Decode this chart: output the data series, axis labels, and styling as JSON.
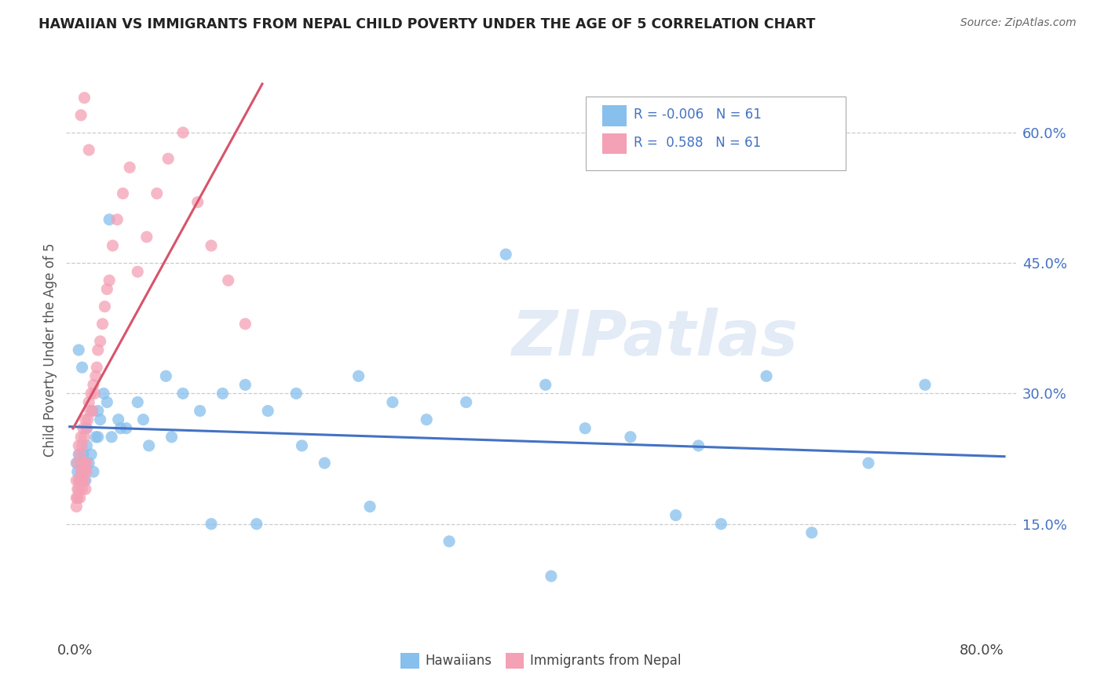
{
  "title": "HAWAIIAN VS IMMIGRANTS FROM NEPAL CHILD POVERTY UNDER THE AGE OF 5 CORRELATION CHART",
  "source": "Source: ZipAtlas.com",
  "legend_label1": "Hawaiians",
  "legend_label2": "Immigrants from Nepal",
  "r1": -0.006,
  "r2": 0.588,
  "n1": 61,
  "n2": 61,
  "color_blue": "#87BFED",
  "color_pink": "#F4A0B5",
  "line_blue": "#4472C4",
  "line_pink": "#D9536A",
  "watermark": "ZIPatlas",
  "ylabel_label": "Child Poverty Under the Age of 5",
  "xlim": [
    0.0,
    0.8
  ],
  "ylim": [
    0.0,
    0.65
  ],
  "yticks": [
    0.15,
    0.3,
    0.45,
    0.6
  ],
  "ytick_labels": [
    "15.0%",
    "30.0%",
    "45.0%",
    "60.0%"
  ],
  "xticks": [
    0.0,
    0.8
  ],
  "xtick_labels": [
    "0.0%",
    "80.0%"
  ],
  "haw_x": [
    0.001,
    0.002,
    0.003,
    0.004,
    0.005,
    0.006,
    0.007,
    0.008,
    0.009,
    0.01,
    0.012,
    0.014,
    0.016,
    0.018,
    0.02,
    0.022,
    0.025,
    0.028,
    0.032,
    0.038,
    0.045,
    0.055,
    0.065,
    0.08,
    0.095,
    0.11,
    0.13,
    0.15,
    0.17,
    0.195,
    0.22,
    0.25,
    0.28,
    0.31,
    0.345,
    0.38,
    0.415,
    0.45,
    0.49,
    0.53,
    0.57,
    0.61,
    0.65,
    0.7,
    0.75,
    0.003,
    0.006,
    0.01,
    0.015,
    0.02,
    0.03,
    0.04,
    0.06,
    0.085,
    0.12,
    0.16,
    0.2,
    0.26,
    0.33,
    0.42,
    0.55
  ],
  "haw_y": [
    0.22,
    0.21,
    0.23,
    0.2,
    0.22,
    0.21,
    0.23,
    0.22,
    0.2,
    0.24,
    0.22,
    0.23,
    0.21,
    0.25,
    0.28,
    0.27,
    0.3,
    0.29,
    0.25,
    0.27,
    0.26,
    0.29,
    0.24,
    0.32,
    0.3,
    0.28,
    0.3,
    0.31,
    0.28,
    0.3,
    0.22,
    0.32,
    0.29,
    0.27,
    0.29,
    0.46,
    0.31,
    0.26,
    0.25,
    0.16,
    0.15,
    0.32,
    0.14,
    0.22,
    0.31,
    0.35,
    0.33,
    0.26,
    0.28,
    0.25,
    0.5,
    0.26,
    0.27,
    0.25,
    0.15,
    0.15,
    0.24,
    0.17,
    0.13,
    0.09,
    0.24
  ],
  "nep_x": [
    0.001,
    0.002,
    0.003,
    0.004,
    0.005,
    0.006,
    0.007,
    0.008,
    0.009,
    0.01,
    0.001,
    0.002,
    0.003,
    0.004,
    0.005,
    0.006,
    0.007,
    0.008,
    0.009,
    0.01,
    0.001,
    0.002,
    0.003,
    0.004,
    0.005,
    0.006,
    0.007,
    0.008,
    0.009,
    0.01,
    0.011,
    0.012,
    0.013,
    0.014,
    0.015,
    0.016,
    0.017,
    0.018,
    0.019,
    0.02,
    0.022,
    0.024,
    0.026,
    0.028,
    0.03,
    0.033,
    0.037,
    0.042,
    0.048,
    0.055,
    0.063,
    0.072,
    0.082,
    0.095,
    0.108,
    0.12,
    0.135,
    0.15,
    0.005,
    0.008,
    0.012
  ],
  "nep_y": [
    0.18,
    0.19,
    0.2,
    0.2,
    0.21,
    0.2,
    0.22,
    0.21,
    0.19,
    0.22,
    0.2,
    0.22,
    0.24,
    0.23,
    0.25,
    0.24,
    0.26,
    0.25,
    0.27,
    0.26,
    0.17,
    0.18,
    0.19,
    0.18,
    0.2,
    0.19,
    0.21,
    0.2,
    0.22,
    0.21,
    0.27,
    0.29,
    0.28,
    0.3,
    0.28,
    0.31,
    0.3,
    0.32,
    0.33,
    0.35,
    0.36,
    0.38,
    0.4,
    0.42,
    0.43,
    0.47,
    0.5,
    0.53,
    0.56,
    0.44,
    0.48,
    0.53,
    0.57,
    0.6,
    0.52,
    0.47,
    0.43,
    0.38,
    0.62,
    0.64,
    0.58
  ]
}
